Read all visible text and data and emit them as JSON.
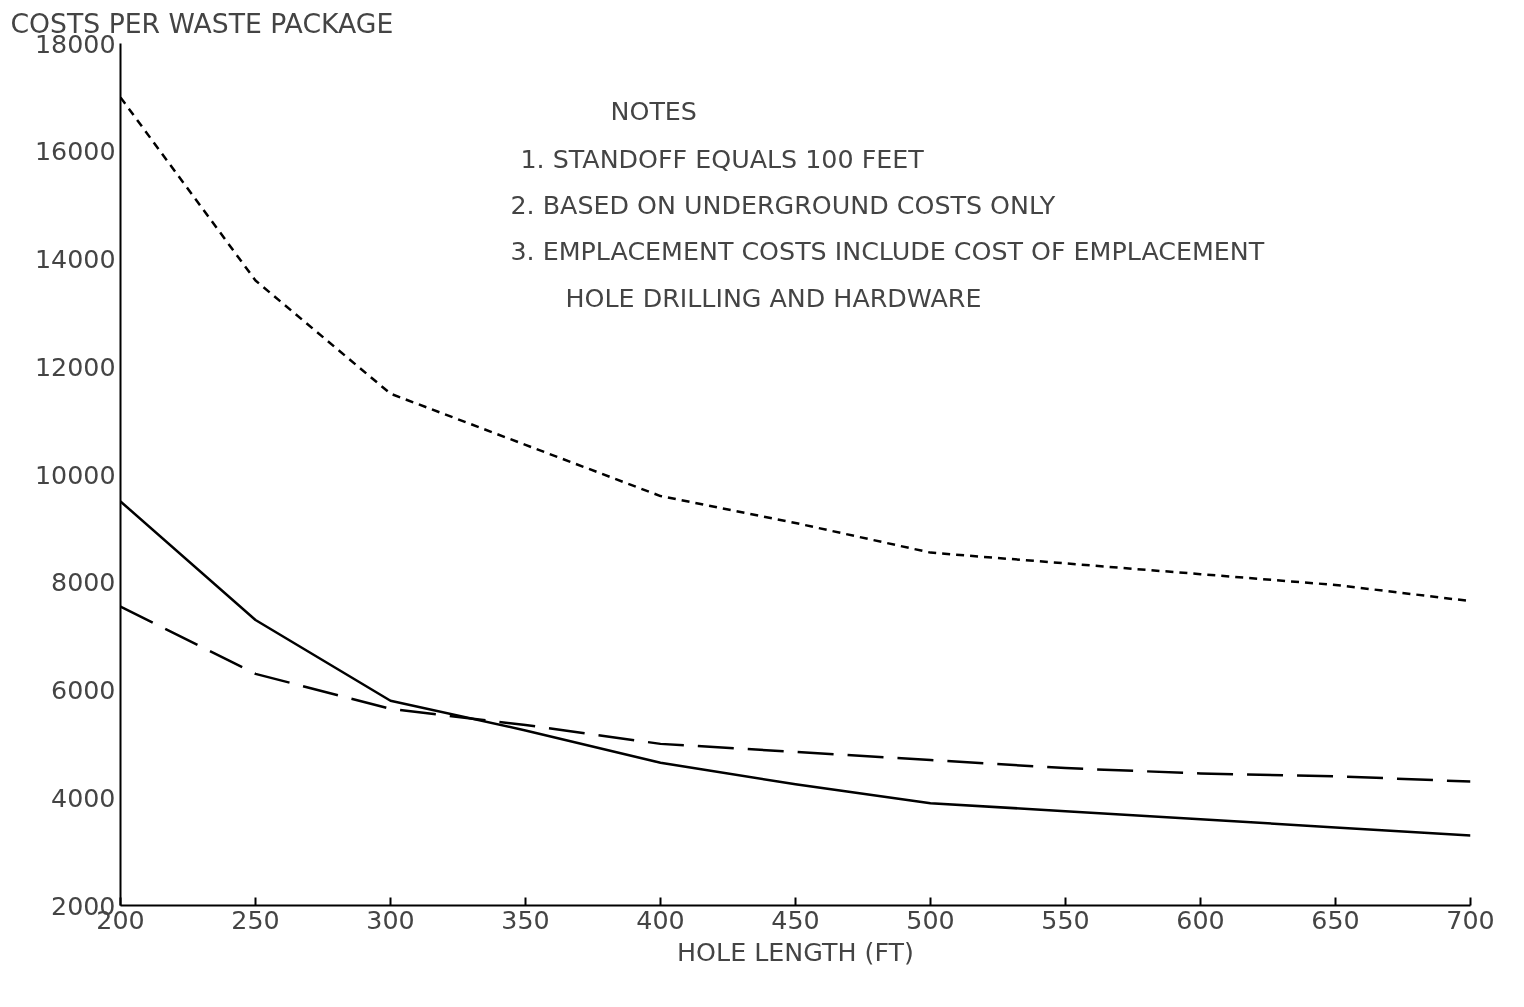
{
  "chart_data": {
    "type": "line",
    "ylabel": "COSTS PER WASTE PACKAGE",
    "xlabel": "HOLE LENGTH (FT)",
    "x": [
      200,
      250,
      300,
      350,
      400,
      450,
      500,
      550,
      600,
      650,
      700
    ],
    "series": [
      {
        "color": "#000000",
        "line_style": "dotted",
        "values": [
          17000,
          13600,
          11500,
          10550,
          9600,
          9100,
          8550,
          8350,
          8150,
          7950,
          7650
        ]
      },
      {
        "color": "#000000",
        "line_style": "solid",
        "values": [
          9500,
          7300,
          5800,
          5250,
          4650,
          4250,
          3900,
          3750,
          3600,
          3450,
          3300
        ]
      },
      {
        "color": "#000000",
        "line_style": "dashed",
        "values": [
          7550,
          6300,
          5650,
          5350,
          5000,
          4850,
          4700,
          4550,
          4450,
          4400,
          4300
        ]
      }
    ],
    "xlim": [
      200,
      700
    ],
    "xticks": [
      200,
      250,
      300,
      350,
      400,
      450,
      500,
      550,
      600,
      650,
      700
    ],
    "ylim": [
      2000,
      18000
    ],
    "yticks": [
      2000,
      4000,
      6000,
      8000,
      10000,
      12000,
      14000,
      16000,
      18000
    ],
    "grid": false,
    "marker": "none",
    "annotations": [
      "NOTES",
      "1. STANDOFF EQUALS 100 FEET",
      "2. BASED ON UNDERGROUND COSTS ONLY",
      "3. EMPLACEMENT COSTS INCLUDE COST OF EMPLACEMENT",
      "HOLE DRILLING AND HARDWARE"
    ]
  }
}
